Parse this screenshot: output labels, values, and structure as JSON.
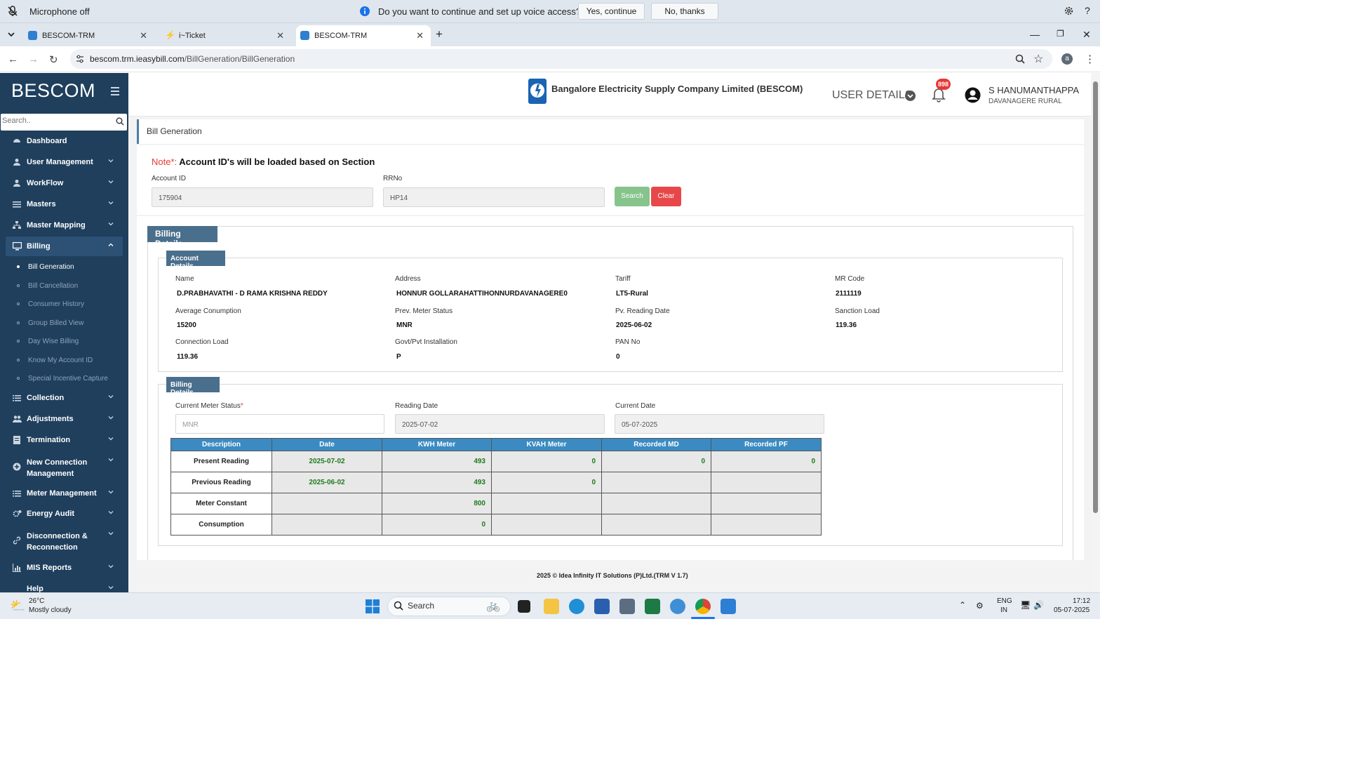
{
  "voice_bar": {
    "status": "Microphone off",
    "question": "Do you want to continue and set up voice access?",
    "yes_label": "Yes, continue",
    "no_label": "No, thanks",
    "help": "?"
  },
  "tabs": [
    {
      "title": "BESCOM-TRM",
      "close": "✕"
    },
    {
      "title": "i~Ticket",
      "close": "✕"
    },
    {
      "title": "BESCOM-TRM",
      "close": "✕"
    }
  ],
  "new_tab": "+",
  "window_controls": {
    "minimize": "—",
    "restore": "❐",
    "close": "✕"
  },
  "address_bar": {
    "host": "bescom.trm.ieasybill.com",
    "path": "/BillGeneration/BillGeneration",
    "profile_initial": "a"
  },
  "sidebar": {
    "brand": "BESCOM",
    "search_placeholder": "Search..",
    "menu": [
      {
        "label": "Dashboard"
      },
      {
        "label": "User Management"
      },
      {
        "label": "WorkFlow"
      },
      {
        "label": "Masters"
      },
      {
        "label": "Master Mapping"
      },
      {
        "label": "Billing"
      },
      {
        "label": "Collection"
      },
      {
        "label": "Adjustments"
      },
      {
        "label": "Termination"
      },
      {
        "label": "New Connection Management"
      },
      {
        "label": "Meter Management"
      },
      {
        "label": "Energy Audit"
      },
      {
        "label": "Disconnection & Reconnection"
      },
      {
        "label": "MIS Reports"
      },
      {
        "label": "Help"
      }
    ],
    "billing_sub": [
      {
        "label": "Bill Generation"
      },
      {
        "label": "Bill Cancellation"
      },
      {
        "label": "Consumer History"
      },
      {
        "label": "Group Billed View"
      },
      {
        "label": "Day Wise Billing"
      },
      {
        "label": "Know My Account ID"
      },
      {
        "label": "Special Incentive Capture"
      }
    ]
  },
  "header": {
    "company": "Bangalore Electricity Supply Company Limited (BESCOM)",
    "user_details": "USER DETAILS",
    "notification_count": "898",
    "user_name": "S HANUMANTHAPPA",
    "user_location": "DAVANAGERE RURAL"
  },
  "page": {
    "breadcrumb": "Bill Generation",
    "note_prefix": "Note*:",
    "note_text": " Account ID's will be loaded based on Section",
    "account_id_label": "Account ID",
    "account_id_value": "175904",
    "rrno_label": "RRNo",
    "rrno_value": "HP14",
    "search_btn": "Search",
    "clear_btn": "Clear",
    "billing_details_title": "Billing Details"
  },
  "account_details": {
    "title": "Account Details",
    "name_label": "Name",
    "name": "D.PRABHAVATHI - D RAMA KRISHNA REDDY",
    "address_label": "Address",
    "address": "HONNUR GOLLARAHATTIHONNURDAVANAGERE0",
    "tariff_label": "Tariff",
    "tariff": "LT5-Rural",
    "mrcode_label": "MR Code",
    "mrcode": "2111119",
    "avg_label": "Average Conumption",
    "avg": "15200",
    "prev_status_label": "Prev. Meter Status",
    "prev_status": "MNR",
    "pv_date_label": "Pv. Reading Date",
    "pv_date": "2025-06-02",
    "sanction_label": "Sanction Load",
    "sanction": "119.36",
    "conn_label": "Connection Load",
    "conn": "119.36",
    "govt_label": "Govt/Pvt Installation",
    "govt": "P",
    "pan_label": "PAN No",
    "pan": "0"
  },
  "billing_section": {
    "title": "Billing Details",
    "cur_status_label": "Current Meter Status",
    "required_mark": "*",
    "cur_status_placeholder": "MNR",
    "reading_date_label": "Reading Date",
    "reading_date": "2025-07-02",
    "current_date_label": "Current Date",
    "current_date": "05-07-2025",
    "columns": [
      "Description",
      "Date",
      "KWH Meter",
      "KVAH Meter",
      "Recorded MD",
      "Recorded PF"
    ],
    "rows": [
      [
        "Present Reading",
        "2025-07-02",
        "493",
        "0",
        "0",
        "0"
      ],
      [
        "Previous Reading",
        "2025-06-02",
        "493",
        "0",
        "",
        ""
      ],
      [
        "Meter Constant",
        "",
        "800",
        "",
        "",
        ""
      ],
      [
        "Consumption",
        "",
        "0",
        "",
        "",
        ""
      ]
    ]
  },
  "footer": "2025 © Idea Infinity IT Solutions (P)Ltd.(TRM V 1.7)",
  "taskbar": {
    "temp": "26°C",
    "weather": "Mostly cloudy",
    "search": "Search",
    "lang1": "ENG",
    "lang2": "IN",
    "time": "17:12",
    "date": "05-07-2025"
  },
  "colors": {
    "sidebar": "#1f3f5d",
    "ribbon": "#4a6f8c",
    "table_header": "#3b8bc2",
    "search_btn": "#86c48c",
    "clear_btn": "#e8474a",
    "green_value": "#1e7a1e"
  }
}
